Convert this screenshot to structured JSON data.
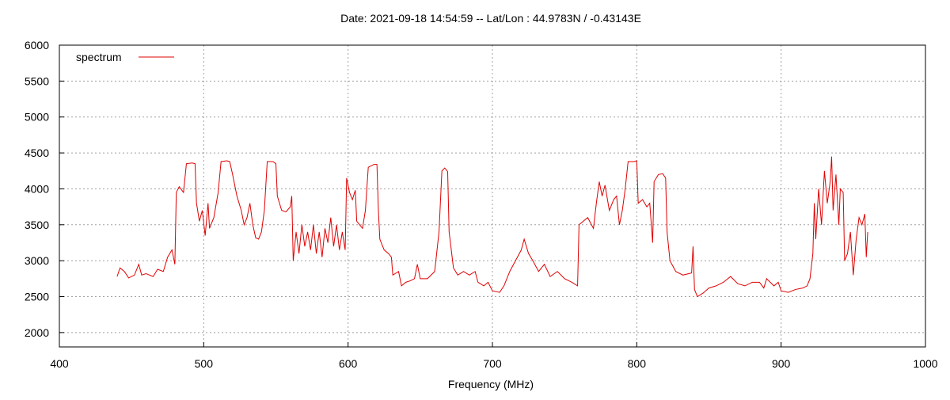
{
  "chart_data": {
    "type": "line",
    "title": "Date: 2021-09-18 14:54:59  --  Lat/Lon : 44.9783N / -0.43143E",
    "x_label": "Frequency (MHz)",
    "xlim": [
      400,
      1000
    ],
    "xticks": [
      400,
      500,
      600,
      700,
      800,
      900,
      1000
    ],
    "ylim": [
      1800,
      6000
    ],
    "yticks": [
      2000,
      2500,
      3000,
      3500,
      4000,
      4500,
      5000,
      5500,
      6000
    ],
    "grid": true,
    "legend": "top-left",
    "series": [
      {
        "name": "spectrum",
        "color": "#e00000",
        "x": [
          440,
          442,
          445,
          448,
          452,
          455,
          457,
          460,
          465,
          468,
          472,
          475,
          478,
          480,
          481,
          483,
          486,
          488,
          492,
          494,
          495,
          497,
          499,
          501,
          503,
          504,
          507,
          510,
          512,
          516,
          518,
          520,
          523,
          526,
          528,
          530,
          532,
          534,
          536,
          538,
          540,
          542,
          544,
          548,
          550,
          551,
          554,
          557,
          560,
          561,
          562,
          564,
          566,
          568,
          570,
          572,
          574,
          576,
          578,
          580,
          582,
          584,
          586,
          588,
          590,
          592,
          594,
          596,
          598,
          599,
          601,
          603,
          605,
          606,
          608,
          610,
          612,
          614,
          618,
          620,
          621,
          622,
          625,
          628,
          630,
          631,
          635,
          637,
          640,
          643,
          646,
          648,
          650,
          655,
          660,
          663,
          665,
          667,
          669,
          670,
          673,
          676,
          680,
          684,
          688,
          690,
          694,
          697,
          700,
          705,
          708,
          712,
          716,
          720,
          722,
          725,
          728,
          732,
          736,
          740,
          745,
          750,
          755,
          759,
          760,
          763,
          766,
          770,
          772,
          774,
          776,
          778,
          781,
          784,
          786,
          788,
          790,
          792,
          794,
          798,
          800,
          801,
          804,
          807,
          809,
          811,
          812,
          815,
          818,
          820,
          821,
          823,
          827,
          832,
          838,
          839,
          840,
          842,
          846,
          850,
          855,
          860,
          865,
          870,
          875,
          880,
          885,
          888,
          890,
          895,
          898,
          900,
          905,
          910,
          915,
          918,
          920,
          922,
          923,
          924,
          926,
          928,
          930,
          932,
          934,
          935,
          936,
          938,
          940,
          941,
          943,
          944,
          946,
          948,
          950,
          952,
          954,
          956,
          958,
          959,
          960
        ],
        "values": [
          2780,
          2900,
          2850,
          2760,
          2800,
          2950,
          2800,
          2820,
          2780,
          2880,
          2850,
          3050,
          3150,
          2950,
          3950,
          4030,
          3950,
          4350,
          4360,
          4350,
          3800,
          3550,
          3700,
          3350,
          3800,
          3450,
          3600,
          3950,
          4380,
          4390,
          4380,
          4200,
          3900,
          3700,
          3500,
          3600,
          3800,
          3500,
          3320,
          3300,
          3400,
          3700,
          4380,
          4380,
          4350,
          3900,
          3700,
          3680,
          3750,
          3900,
          3000,
          3400,
          3100,
          3500,
          3200,
          3400,
          3150,
          3500,
          3100,
          3400,
          3050,
          3450,
          3250,
          3600,
          3200,
          3500,
          3150,
          3400,
          3150,
          4150,
          3950,
          3850,
          3980,
          3550,
          3500,
          3450,
          3700,
          4300,
          4340,
          4340,
          3700,
          3300,
          3150,
          3100,
          3050,
          2800,
          2850,
          2650,
          2700,
          2720,
          2750,
          2950,
          2750,
          2750,
          2850,
          3400,
          4250,
          4290,
          4240,
          3400,
          2900,
          2800,
          2850,
          2800,
          2850,
          2700,
          2650,
          2700,
          2580,
          2560,
          2650,
          2850,
          3000,
          3150,
          3300,
          3100,
          3000,
          2850,
          2950,
          2780,
          2850,
          2750,
          2700,
          2650,
          3500,
          3550,
          3600,
          3450,
          3800,
          4100,
          3900,
          4050,
          3700,
          3850,
          3900,
          3500,
          3700,
          4000,
          4380,
          4380,
          4390,
          3800,
          3850,
          3750,
          3800,
          3250,
          4100,
          4200,
          4210,
          4150,
          3400,
          3000,
          2850,
          2800,
          2830,
          3200,
          2600,
          2500,
          2550,
          2620,
          2650,
          2700,
          2780,
          2680,
          2650,
          2700,
          2700,
          2620,
          2750,
          2650,
          2700,
          2580,
          2560,
          2600,
          2620,
          2650,
          2750,
          3100,
          3800,
          3300,
          4000,
          3500,
          4250,
          3800,
          4100,
          4450,
          3700,
          4200,
          3500,
          4000,
          3950,
          3000,
          3100,
          3400,
          2800,
          3300,
          3600,
          3500,
          3650,
          3050,
          3400
        ]
      }
    ]
  }
}
